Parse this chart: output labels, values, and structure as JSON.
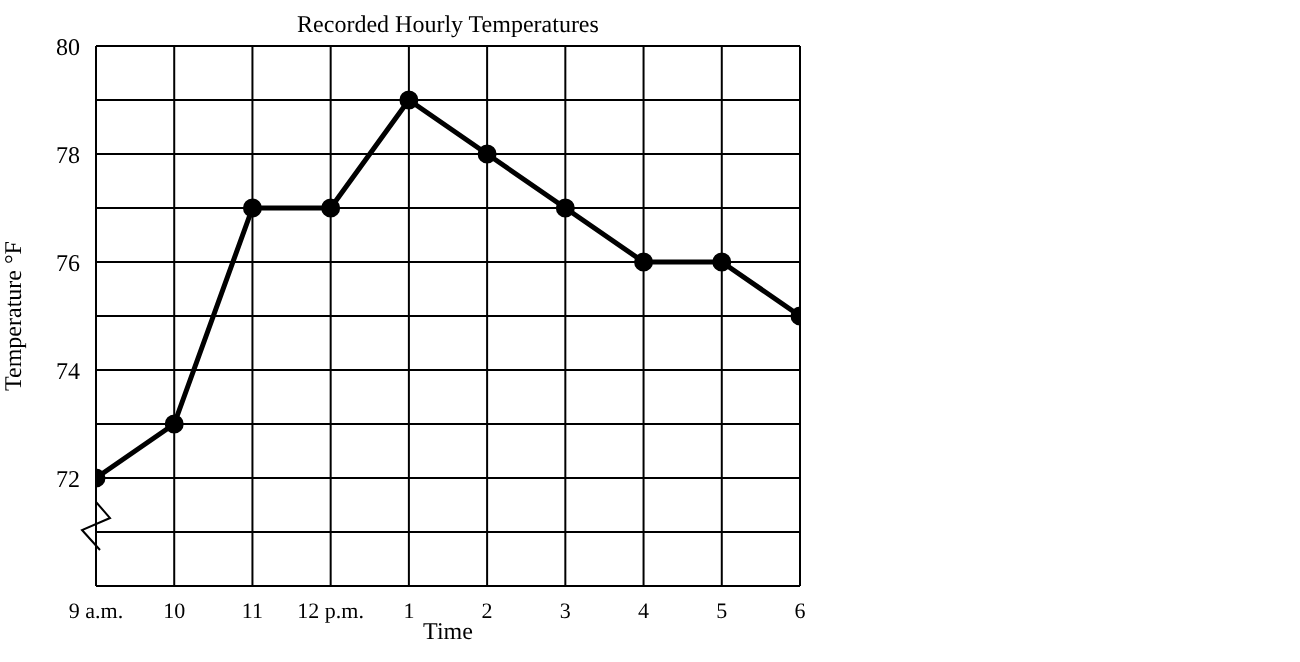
{
  "chart_data": {
    "type": "line",
    "title": "Recorded Hourly Temperatures",
    "xlabel": "Time",
    "ylabel": "Temperature °F",
    "categories": [
      "9 a.m.",
      "10",
      "11",
      "12 p.m.",
      "1",
      "2",
      "3",
      "4",
      "5",
      "6"
    ],
    "values": [
      72,
      73,
      77,
      77,
      79,
      78,
      77,
      76,
      76,
      75
    ],
    "color": "#000000",
    "marker": "circle",
    "line_style": "solid",
    "grid": true,
    "ylim": [
      70,
      80
    ],
    "yticks": [
      {
        "value": 70,
        "label": null
      },
      {
        "value": 71,
        "label": null
      },
      72,
      {
        "value": 73,
        "label": null
      },
      74,
      {
        "value": 75,
        "label": null
      },
      76,
      {
        "value": 77,
        "label": null
      },
      78,
      {
        "value": 79,
        "label": null
      },
      80
    ]
  }
}
